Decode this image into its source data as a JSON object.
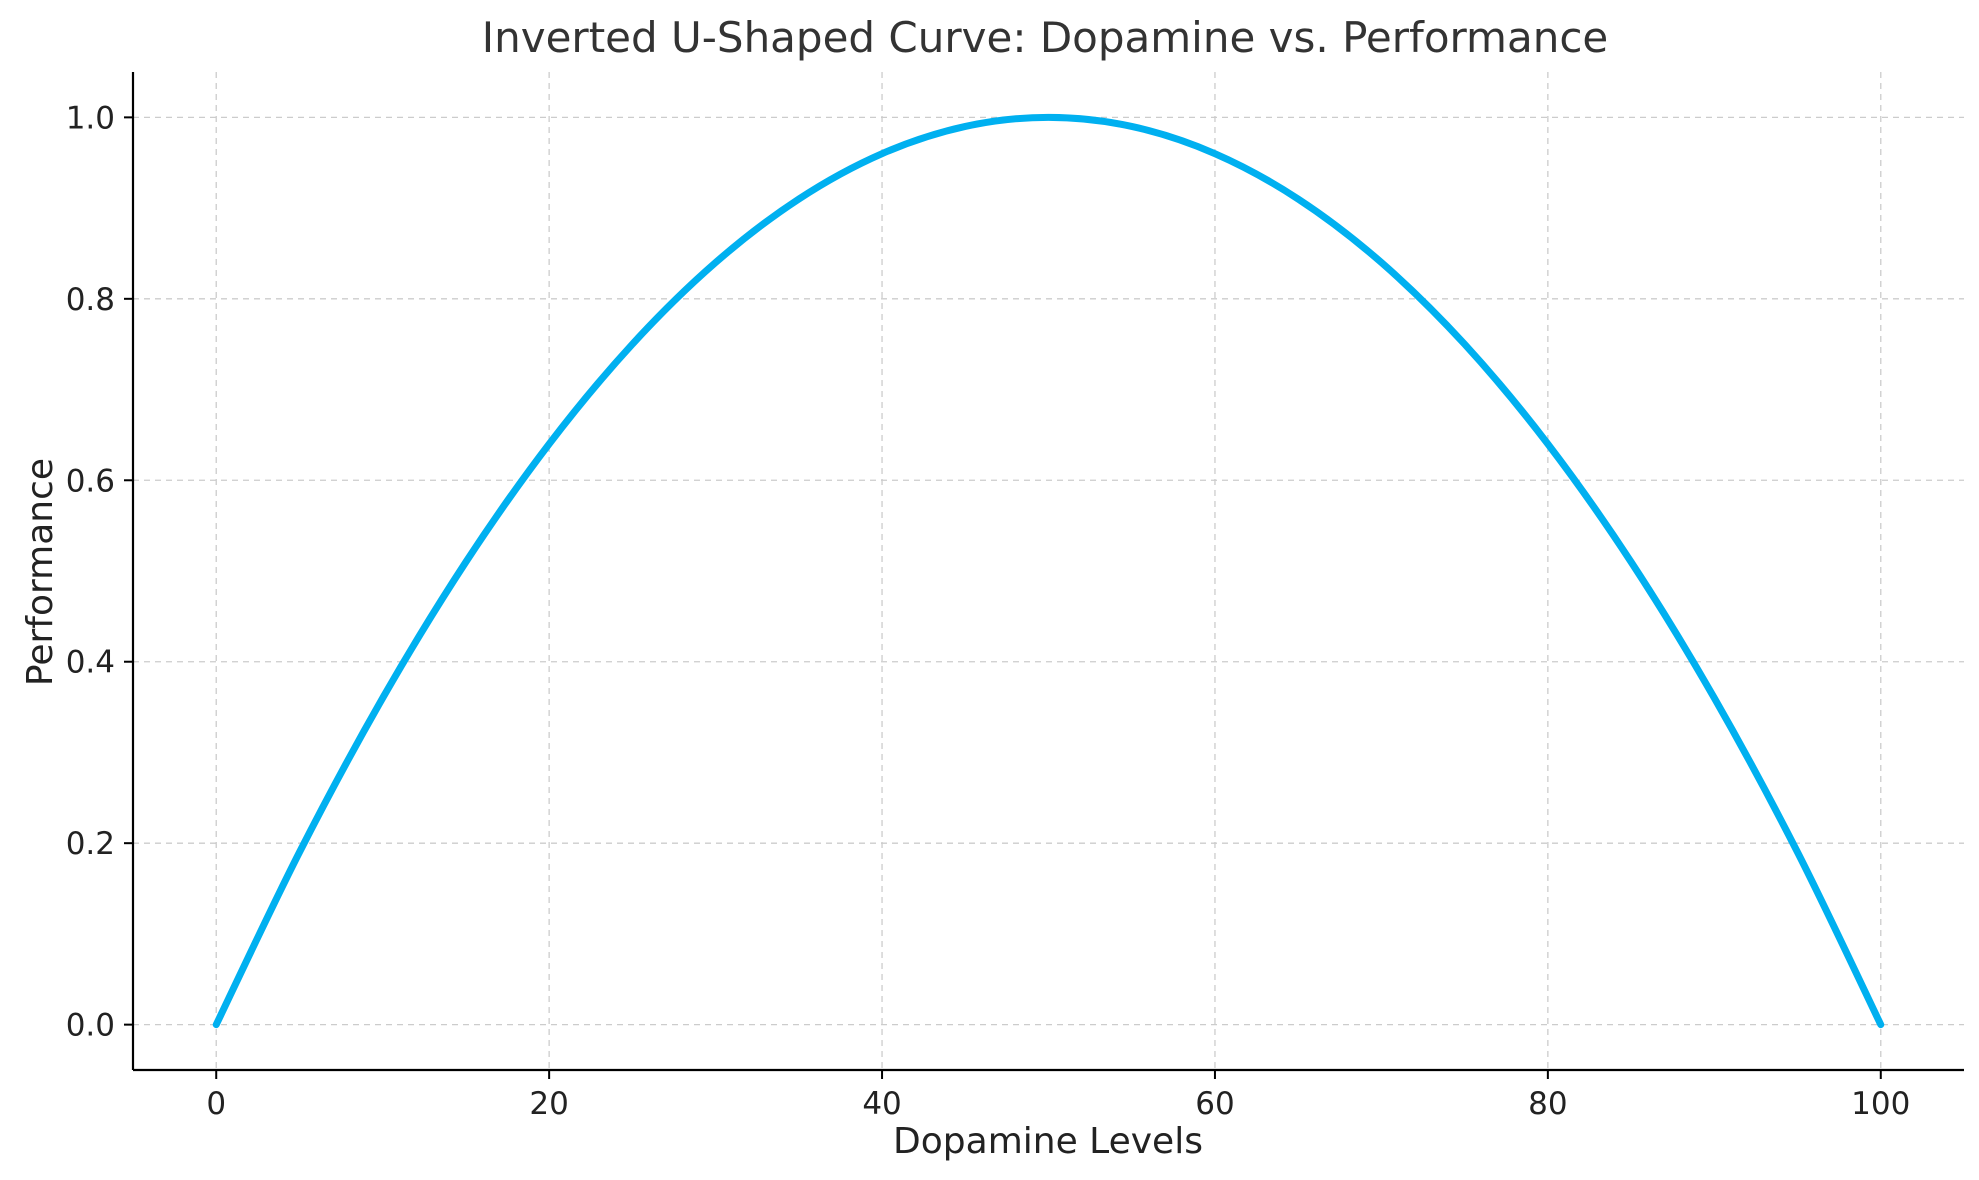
{
  "chart_data": {
    "type": "line",
    "title": "Inverted U-Shaped Curve: Dopamine vs. Performance",
    "xlabel": "Dopamine Levels",
    "ylabel": "Performance",
    "xlim": [
      -5,
      105
    ],
    "ylim": [
      -0.05,
      1.05
    ],
    "grid": true,
    "x_ticks": [
      0,
      20,
      40,
      60,
      80,
      100
    ],
    "x_tick_labels": [
      "0",
      "20",
      "40",
      "60",
      "80",
      "100"
    ],
    "y_ticks": [
      0.0,
      0.2,
      0.4,
      0.6,
      0.8,
      1.0
    ],
    "y_tick_labels": [
      "0.0",
      "0.2",
      "0.4",
      "0.6",
      "0.8",
      "1.0"
    ],
    "series": [
      {
        "name": "Performance",
        "color": "#00b0f0",
        "x": [
          0,
          5,
          10,
          15,
          20,
          25,
          30,
          35,
          40,
          45,
          50,
          55,
          60,
          65,
          70,
          75,
          80,
          85,
          90,
          95,
          100
        ],
        "values": [
          0.0,
          0.19,
          0.36,
          0.51,
          0.64,
          0.75,
          0.84,
          0.91,
          0.96,
          0.99,
          1.0,
          0.99,
          0.96,
          0.91,
          0.84,
          0.75,
          0.64,
          0.51,
          0.36,
          0.19,
          0.0
        ]
      }
    ]
  }
}
